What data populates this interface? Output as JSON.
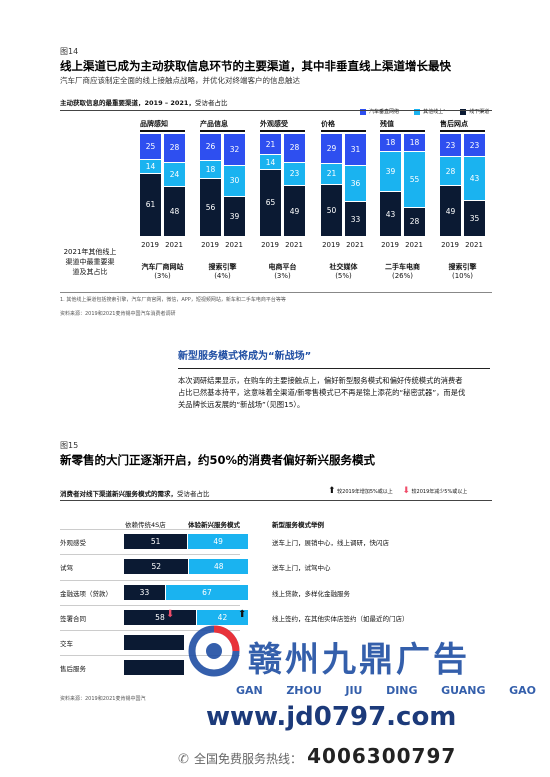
{
  "fig14": {
    "figure_label": "图14",
    "title": "线上渠道已成为主动获取信息环节的主要渠道，其中非垂直线上渠道增长最快",
    "subtitle": "汽车厂商应该制定全面的线上接触点战略，并优化对终端客户的信息触达",
    "chart_title": "主动获取信息的最重要渠道，2019 – 2021，",
    "chart_unit": "受访者占比",
    "legend": [
      "汽车垂直网络",
      "其他线上¹",
      "线下渠道"
    ],
    "stage_headers": [
      "品牌感知",
      "产品信息",
      "外观感受",
      "价格",
      "残值",
      "售后网点"
    ],
    "left_note": "2021年其他线上\n渠道中最重要渠\n道及其占比",
    "footnote": "1.   其他线上渠道包括搜索引擎，汽车厂商官网，微信，APP，短视频网站，新车和二手车电商平台等等",
    "source": "资料来源：2019和2021麦肯锡中国汽车消费者调研"
  },
  "chart_data": {
    "type": "bar",
    "stacked": true,
    "title": "主动获取信息的最重要渠道，2019 – 2021，",
    "ylabel": "受访者占比",
    "groups": [
      "品牌感知",
      "产品信息",
      "外观感受",
      "价格",
      "残值",
      "售后网点"
    ],
    "categories": [
      "2019",
      "2021"
    ],
    "series": [
      {
        "name": "线下渠道",
        "color": "#0b1a33",
        "values": [
          [
            61,
            48
          ],
          [
            56,
            39
          ],
          [
            65,
            49
          ],
          [
            50,
            33
          ],
          [
            43,
            28
          ],
          [
            49,
            35
          ]
        ]
      },
      {
        "name": "其他线上¹",
        "color": "#1ab3f0",
        "values": [
          [
            14,
            24
          ],
          [
            18,
            30
          ],
          [
            14,
            23
          ],
          [
            21,
            36
          ],
          [
            39,
            55
          ],
          [
            28,
            43
          ]
        ]
      },
      {
        "name": "汽车垂直网络",
        "color": "#2e4ff0",
        "values": [
          [
            25,
            28
          ],
          [
            26,
            32
          ],
          [
            21,
            28
          ],
          [
            29,
            31
          ],
          [
            18,
            18
          ],
          [
            23,
            23
          ]
        ]
      }
    ],
    "group_notes": [
      {
        "label": "汽车厂商网站",
        "pct": "(3%)"
      },
      {
        "label": "搜索引擎",
        "pct": "(4%)"
      },
      {
        "label": "电商平台",
        "pct": "(3%)"
      },
      {
        "label": "社交媒体",
        "pct": "(5%)"
      },
      {
        "label": "二手车电商",
        "pct": "(26%)"
      },
      {
        "label": "搜索引擎",
        "pct": "(10%)"
      }
    ],
    "ylim": [
      0,
      100
    ]
  },
  "section": {
    "heading": "新型服务模式将成为“新战场”",
    "body_line1": "本次调研结果显示，在购车的主要接触点上，偏好新型服务模式和偏好传统模式的消费者",
    "body_line2": "占比已然基本持平，这意味着全渠道/新零售模式已不再是锦上添花的“秘密武器”，而是伐",
    "body_line3": "关品牌长远发展的“新战场”（见图15）。"
  },
  "fig15": {
    "figure_label": "图15",
    "title": "新零售的大门正逐渐开启，约50%的消费者偏好新兴服务模式",
    "chart_title": "消费者对线下渠道新兴服务模式的需求，",
    "chart_unit": "受访者占比",
    "legend_up": "较2019年增加5%或以上",
    "legend_down": "较2019年减少5%或以上",
    "col_trad": "依赖传统4S店",
    "col_new": "体验新兴服务模式",
    "col_examples": "新型服务模式举例",
    "rows": [
      {
        "label": "外观感受",
        "trad": "51",
        "new": "49",
        "example": "送车上门，展销中心，线上调研，快闪店"
      },
      {
        "label": "试驾",
        "trad": "52",
        "new": "48",
        "example": "送车上门，试驾中心"
      },
      {
        "label": "金融选项（贷款）",
        "trad": "33",
        "new": "67",
        "example": "线上贷款，多样化金融服务"
      },
      {
        "label": "签署合同",
        "trad": "58",
        "new": "42",
        "example": "线上签约，在其他实体店签约（如最近的门店）"
      },
      {
        "label": "交车",
        "trad": "",
        "new": "",
        "example": ""
      },
      {
        "label": "售后服务",
        "trad": "",
        "new": "",
        "example": ""
      }
    ],
    "source": "资料来源：2019和2021麦肯锡中国汽"
  },
  "watermark": {
    "brand_cn": "赣州九鼎广告",
    "brand_py": [
      "GAN",
      "ZHOU",
      "JIU",
      "DING",
      "GUANG",
      "GAO"
    ],
    "url": "www.jd0797.com",
    "hotline_label": "全国免费服务热线：",
    "hotline": "4006300797"
  },
  "colors": {
    "vertical": "#2e4ff0",
    "other_online": "#1ab3f0",
    "offline": "#0b1a33",
    "up_arrow": "#111111",
    "down_arrow": "#f04d6a",
    "watermark_blue": "#1f4ea3"
  }
}
